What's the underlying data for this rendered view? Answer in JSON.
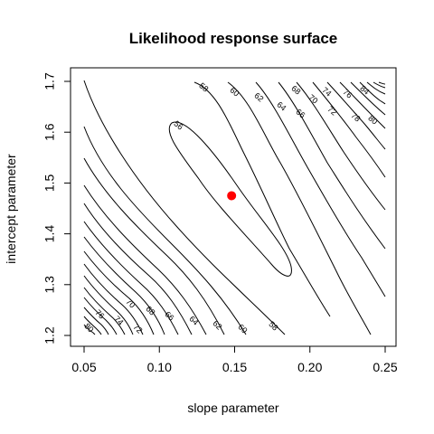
{
  "chart_data": {
    "type": "contour",
    "title": "Likelihood response surface",
    "xlabel": "slope parameter",
    "ylabel": "intercept parameter",
    "xlim": [
      0.05,
      0.25
    ],
    "ylim": [
      1.2,
      1.7
    ],
    "x_ticks": [
      0.05,
      0.1,
      0.15,
      0.2,
      0.25
    ],
    "x_tick_labels": [
      "0.05",
      "0.10",
      "0.15",
      "0.20",
      "0.25"
    ],
    "y_ticks": [
      1.2,
      1.3,
      1.4,
      1.5,
      1.6,
      1.7
    ],
    "y_tick_labels": [
      "1.2",
      "1.3",
      "1.4",
      "1.5",
      "1.6",
      "1.7"
    ],
    "grid": false,
    "minimum_point": {
      "x": 0.148,
      "y": 1.475,
      "color": "#ff0000"
    },
    "contour_levels": [
      56,
      58,
      60,
      62,
      64,
      66,
      68,
      70,
      72,
      74,
      76,
      78,
      80,
      82,
      84
    ],
    "contour_labels_lower_left": [
      "80",
      "76",
      "74",
      "72",
      "70",
      "68",
      "66",
      "64",
      "62",
      "60",
      "58"
    ],
    "contour_labels_upper_right": [
      "56",
      "58",
      "60",
      "62",
      "64",
      "66",
      "68",
      "70",
      "72",
      "74",
      "76",
      "78",
      "80",
      "84"
    ]
  }
}
